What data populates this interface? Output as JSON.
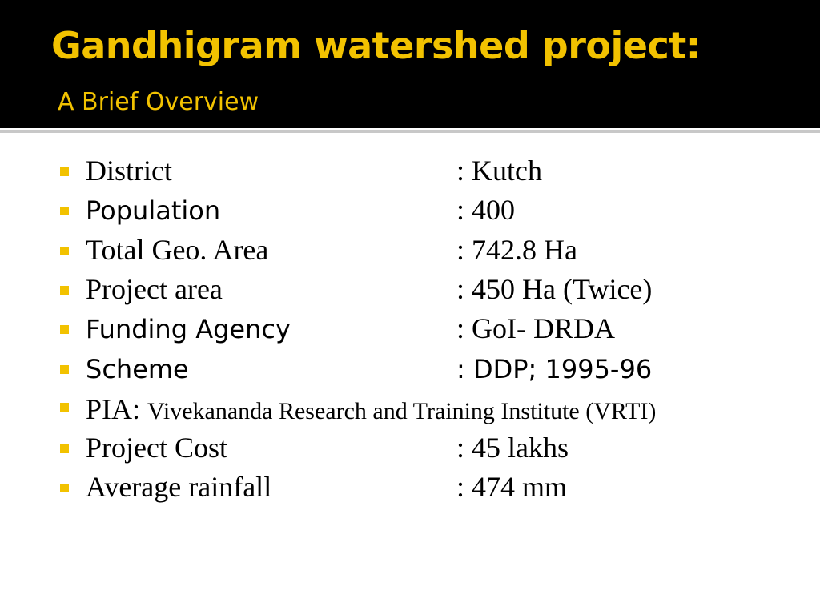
{
  "header": {
    "title": "Gandhigram watershed project:",
    "subtitle": "A Brief Overview"
  },
  "items": [
    {
      "label": "District",
      "value": ": Kutch"
    },
    {
      "label": "Population",
      "value": ": 400"
    },
    {
      "label": "Total Geo. Area",
      "value": ": 742.8 Ha"
    },
    {
      "label": "Project area",
      "value": ": 450 Ha (Twice)"
    },
    {
      "label": "Funding Agency",
      "value": ": GoI- DRDA"
    },
    {
      "label": "Scheme",
      "value": ": DDP; 1995-96"
    },
    {
      "label": "PIA:",
      "value": "Vivekananda Research and Training Institute (VRTI)"
    },
    {
      "label": "Project Cost",
      "value": ": 45 lakhs"
    },
    {
      "label": "Average rainfall",
      "value": ": 474 mm"
    }
  ]
}
